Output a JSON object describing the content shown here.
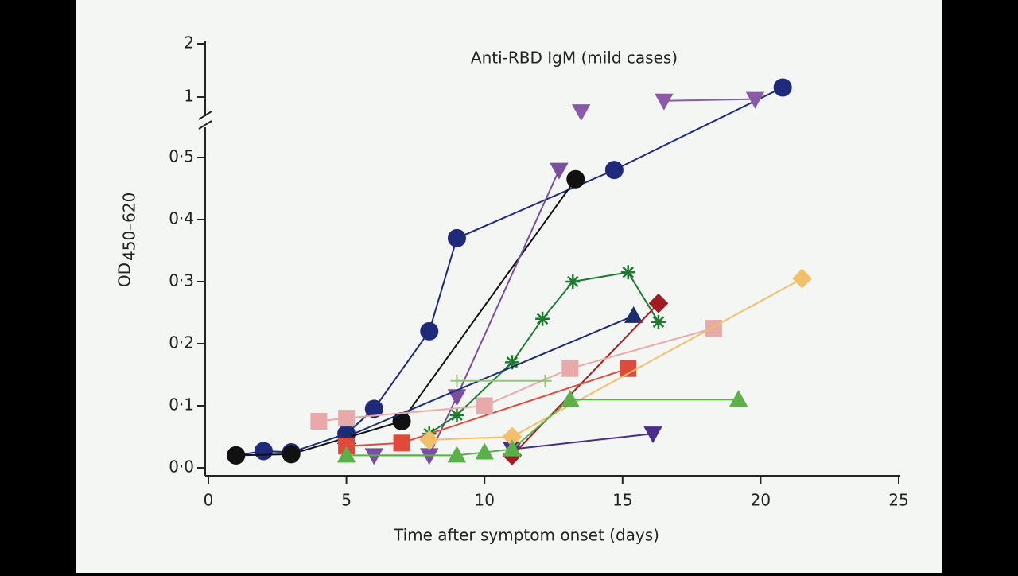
{
  "chart_data": {
    "type": "line",
    "title": "Anti-RBD IgM (mild cases)",
    "y_label": {
      "text": "OD",
      "subscript": "450–620"
    },
    "x_label": "Time after symptom onset (days)",
    "xlim": [
      0,
      25
    ],
    "xticks": [
      0,
      5,
      10,
      15,
      20,
      25
    ],
    "ylim": [
      0,
      2
    ],
    "ybreak": 0.55,
    "yticks": [
      {
        "value": 0,
        "label": "0·0"
      },
      {
        "value": 0.1,
        "label": "0·1"
      },
      {
        "value": 0.2,
        "label": "0·2"
      },
      {
        "value": 0.3,
        "label": "0·3"
      },
      {
        "value": 0.4,
        "label": "0·4"
      },
      {
        "value": 0.5,
        "label": "0·5"
      },
      1,
      2
    ],
    "series": [
      {
        "color": "#1f2a7a",
        "marker": "circle",
        "x": [
          1,
          2,
          3,
          5,
          6,
          8,
          9,
          14.7,
          20.8
        ],
        "values": [
          0.02,
          0.027,
          0.025,
          0.055,
          0.095,
          0.22,
          0.37,
          0.48,
          1.18
        ]
      },
      {
        "color": "#111111",
        "marker": "circle",
        "x": [
          1,
          3,
          7,
          13.3
        ],
        "values": [
          0.02,
          0.022,
          0.075,
          0.465
        ]
      },
      {
        "color": "#7b4fa0",
        "marker": "triangle-down",
        "x": [
          6,
          8,
          9,
          12.7
        ],
        "values": [
          0.02,
          0.02,
          0.115,
          0.48
        ]
      },
      {
        "color": "#4a2d8a",
        "marker": "triangle-down",
        "x": [
          11,
          16.1
        ],
        "values": [
          0.03,
          0.055
        ]
      },
      {
        "color": "#8a5aa8",
        "marker": "triangle-down",
        "x": [
          13.5
        ],
        "values": [
          0.73
        ]
      },
      {
        "color": "#8a5aa8",
        "marker": "triangle-down",
        "x": [
          16.5,
          19.8
        ],
        "values": [
          0.93,
          0.96
        ]
      },
      {
        "color": "#1e7a2e",
        "marker": "star",
        "x": [
          8,
          9,
          11,
          12.1,
          13.2,
          15.2,
          16.3
        ],
        "values": [
          0.055,
          0.085,
          0.17,
          0.24,
          0.3,
          0.315,
          0.235
        ]
      },
      {
        "color": "#1c2d6e",
        "marker": "triangle-up",
        "x": [
          5,
          15.4
        ],
        "values": [
          0.05,
          0.245
        ]
      },
      {
        "color": "#a01c22",
        "marker": "diamond",
        "x": [
          11,
          16.3
        ],
        "values": [
          0.02,
          0.265
        ]
      },
      {
        "color": "#e04a3a",
        "marker": "square",
        "x": [
          5,
          7,
          15.2
        ],
        "values": [
          0.035,
          0.04,
          0.16
        ]
      },
      {
        "color": "#e8aaa8",
        "marker": "square",
        "x": [
          4,
          5,
          10,
          13.1,
          18.3
        ],
        "values": [
          0.075,
          0.08,
          0.1,
          0.16,
          0.225
        ]
      },
      {
        "color": "#f2c06a",
        "marker": "diamond",
        "x": [
          8,
          11,
          21.5
        ],
        "values": [
          0.045,
          0.05,
          0.305
        ]
      },
      {
        "color": "#5cb04a",
        "marker": "triangle-up",
        "x": [
          5,
          9,
          10,
          11,
          13.1,
          19.2
        ],
        "values": [
          0.02,
          0.02,
          0.025,
          0.03,
          0.11,
          0.11
        ]
      },
      {
        "color": "#8cc870",
        "marker": "plus",
        "x": [
          9,
          12.2
        ],
        "values": [
          0.14,
          0.14
        ]
      }
    ]
  }
}
